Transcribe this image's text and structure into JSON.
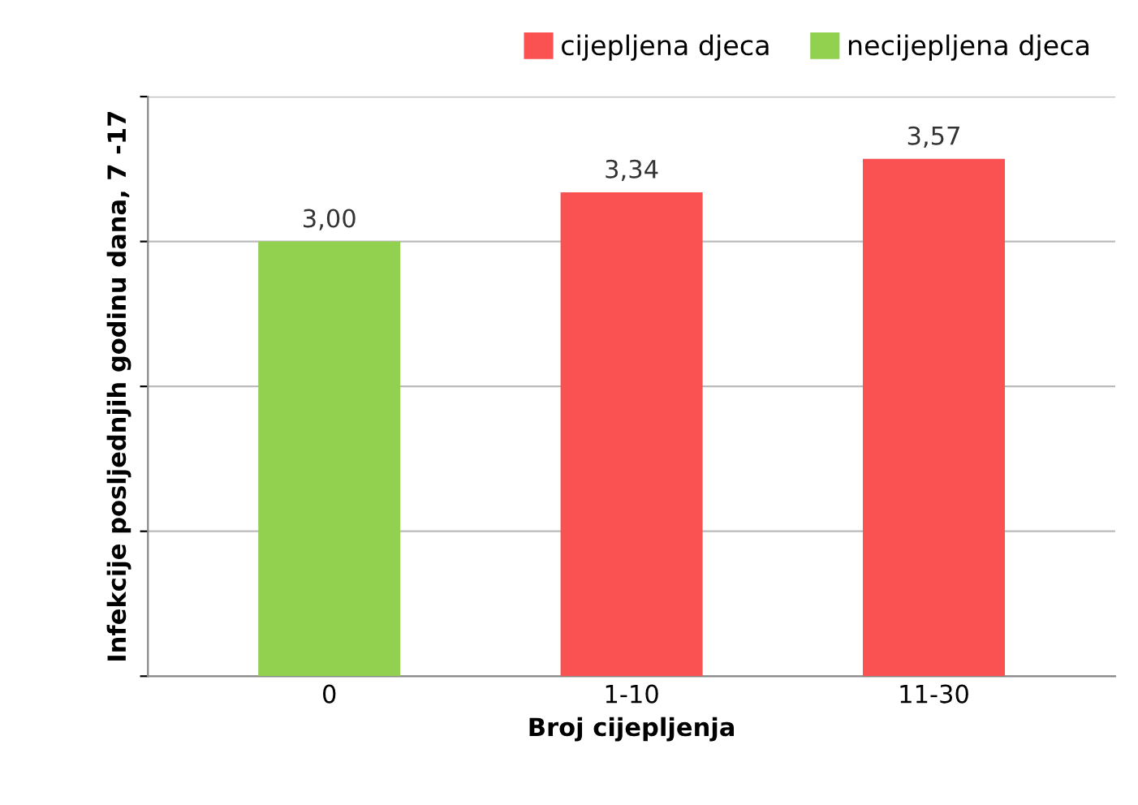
{
  "chart_data": {
    "type": "bar",
    "xlabel": "Broj cijepljenja",
    "ylabel": "Infekcije posljednjih godinu dana, 7 -17",
    "categories": [
      "0",
      "1-10",
      "11-30"
    ],
    "series": [
      {
        "name": "cijepljena djeca",
        "color": "#fa5252",
        "values": [
          null,
          3.34,
          3.57
        ],
        "value_labels": [
          null,
          "3,34",
          "3,57"
        ]
      },
      {
        "name": "necijepljena djeca",
        "color": "#92d050",
        "values": [
          3.0,
          null,
          null
        ],
        "value_labels": [
          "3,00",
          null,
          null
        ]
      }
    ],
    "ylim": [
      0,
      4
    ],
    "yticks": [
      {
        "value": 0,
        "label": null
      },
      {
        "value": 1,
        "label": null
      },
      {
        "value": 2,
        "label": null
      },
      {
        "value": 3,
        "label": null
      },
      {
        "value": 4,
        "label": null
      }
    ],
    "grid": "y",
    "legend": "top right",
    "tick_labels": "x"
  }
}
